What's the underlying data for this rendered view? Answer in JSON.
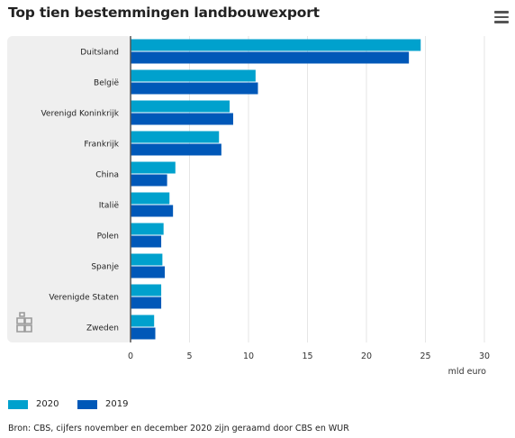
{
  "colors": {
    "s2020": "#00a1cd",
    "s2019": "#0058b8",
    "panel": "#efefef",
    "grid": "#e6e6e6",
    "axis": "#555555"
  },
  "header": {
    "title": "Top tien bestemmingen landbouwexport",
    "menu_icon": "hamburger-menu-icon"
  },
  "source": "Bron: CBS, cijfers november en december 2020 zijn geraamd door CBS en WUR",
  "chart_data": {
    "type": "bar",
    "orientation": "horizontal",
    "title": "Top tien bestemmingen landbouwexport",
    "categories": [
      "Duitsland",
      "België",
      "Verenigd Koninkrijk",
      "Frankrijk",
      "China",
      "Italië",
      "Polen",
      "Spanje",
      "Verenigde Staten",
      "Zweden"
    ],
    "series": [
      {
        "name": "2020",
        "color": "#00a1cd",
        "values": [
          24.6,
          10.6,
          8.4,
          7.5,
          3.8,
          3.3,
          2.8,
          2.7,
          2.6,
          2.0
        ]
      },
      {
        "name": "2019",
        "color": "#0058b8",
        "values": [
          23.6,
          10.8,
          8.7,
          7.7,
          3.1,
          3.6,
          2.6,
          2.9,
          2.6,
          2.1
        ]
      }
    ],
    "xlabel": "mld euro",
    "ylabel": "",
    "xlim": [
      0,
      30
    ],
    "xticks": [
      0,
      5,
      10,
      15,
      20,
      25,
      30
    ],
    "grid": true,
    "legend_position": "bottom-left"
  }
}
